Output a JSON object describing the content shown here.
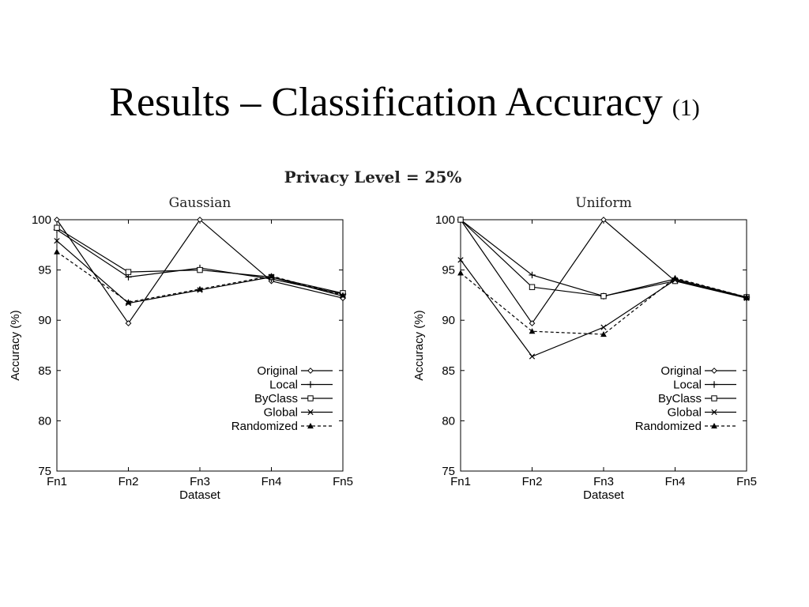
{
  "slide": {
    "title": "Results – Classification Accuracy",
    "title_suffix": "(1)",
    "chart_suptitle": "Privacy Level = 25%"
  },
  "chart_data": [
    {
      "type": "line",
      "title": "Gaussian",
      "xlabel": "Dataset",
      "ylabel": "Accuracy (%)",
      "categories": [
        "Fn1",
        "Fn2",
        "Fn3",
        "Fn4",
        "Fn5"
      ],
      "ylim": [
        75,
        100
      ],
      "yticks": [
        75,
        80,
        85,
        90,
        95,
        100
      ],
      "grid": false,
      "legend_position": "lower-right",
      "series": [
        {
          "name": "Original",
          "marker": "diamond",
          "dash": "solid",
          "values": [
            100,
            89.7,
            100,
            93.9,
            92.2
          ]
        },
        {
          "name": "Local",
          "marker": "plus",
          "dash": "solid",
          "values": [
            99.0,
            94.3,
            95.2,
            94.1,
            92.6
          ]
        },
        {
          "name": "ByClass",
          "marker": "square",
          "dash": "solid",
          "values": [
            99.2,
            94.8,
            95.0,
            94.3,
            92.7
          ]
        },
        {
          "name": "Global",
          "marker": "cross",
          "dash": "solid",
          "values": [
            97.9,
            91.7,
            93.0,
            94.3,
            92.4
          ]
        },
        {
          "name": "Randomized",
          "marker": "triangle",
          "dash": "dashed",
          "values": [
            96.8,
            91.8,
            93.1,
            94.4,
            92.5
          ]
        }
      ]
    },
    {
      "type": "line",
      "title": "Uniform",
      "xlabel": "Dataset",
      "ylabel": "Accuracy (%)",
      "categories": [
        "Fn1",
        "Fn2",
        "Fn3",
        "Fn4",
        "Fn5"
      ],
      "ylim": [
        75,
        100
      ],
      "yticks": [
        75,
        80,
        85,
        90,
        95,
        100
      ],
      "grid": false,
      "legend_position": "lower-right",
      "series": [
        {
          "name": "Original",
          "marker": "diamond",
          "dash": "solid",
          "values": [
            100,
            89.7,
            100,
            93.9,
            92.2
          ]
        },
        {
          "name": "Local",
          "marker": "plus",
          "dash": "solid",
          "values": [
            100,
            94.5,
            92.4,
            94.1,
            92.3
          ]
        },
        {
          "name": "ByClass",
          "marker": "square",
          "dash": "solid",
          "values": [
            100,
            93.3,
            92.4,
            93.9,
            92.3
          ]
        },
        {
          "name": "Global",
          "marker": "cross",
          "dash": "solid",
          "values": [
            96.0,
            86.4,
            89.3,
            94.0,
            92.2
          ]
        },
        {
          "name": "Randomized",
          "marker": "triangle",
          "dash": "dashed",
          "values": [
            94.7,
            88.9,
            88.6,
            94.2,
            92.3
          ]
        }
      ]
    }
  ]
}
